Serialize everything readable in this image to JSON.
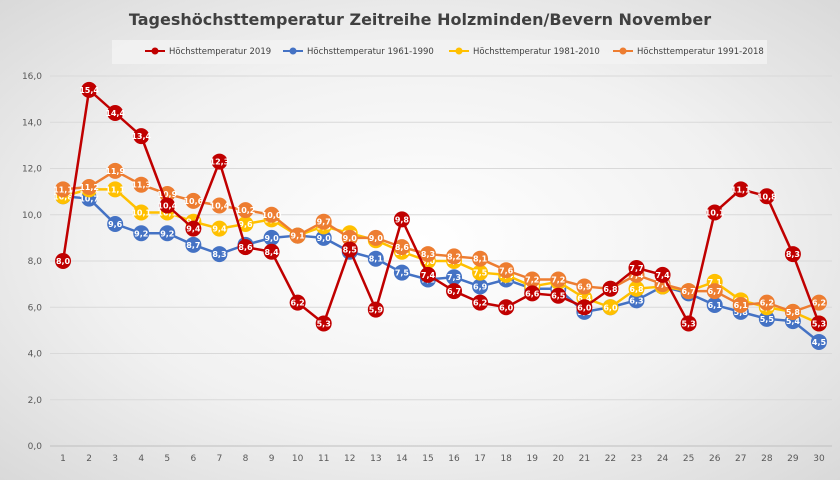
{
  "chart_data": {
    "type": "line",
    "title": "Tageshöchsttemperatur Zeitreihe Holzminden/Bevern November",
    "xlabel": "",
    "ylabel": "",
    "ylim": [
      0,
      16
    ],
    "ytick_labels": [
      "0,0",
      "2,0",
      "4,0",
      "6,0",
      "8,0",
      "10,0",
      "12,0",
      "14,0",
      "16,0"
    ],
    "categories": [
      "1",
      "2",
      "3",
      "4",
      "5",
      "6",
      "7",
      "8",
      "9",
      "10",
      "11",
      "12",
      "13",
      "14",
      "15",
      "16",
      "17",
      "18",
      "19",
      "20",
      "21",
      "22",
      "23",
      "24",
      "25",
      "26",
      "27",
      "28",
      "29",
      "30"
    ],
    "grid": true,
    "legend": "top",
    "series": [
      {
        "name": "Höchsttemperatur 1961-1990",
        "color": "#4472C4",
        "values": [
          10.8,
          10.7,
          9.6,
          9.2,
          9.2,
          8.7,
          8.3,
          8.7,
          9.0,
          9.1,
          9.0,
          8.4,
          8.1,
          7.5,
          7.2,
          7.3,
          6.9,
          7.2,
          6.8,
          6.8,
          5.8,
          6.0,
          6.3,
          6.9,
          6.6,
          6.1,
          5.8,
          5.5,
          5.4,
          4.5
        ],
        "labels": [
          "10,8",
          "10,7",
          "9,6",
          "9,2",
          "9,2",
          "8,7",
          "8,3",
          "8,7",
          "9,0",
          "9,1",
          "9,0",
          "8,4",
          "8,1",
          "7,5",
          "7,2",
          "7,3",
          "6,9",
          "7,2",
          "6,8",
          "6,8",
          "5,8",
          "6,0",
          "6,3",
          "6,9",
          "6,6",
          "6,1",
          "5,8",
          "5,5",
          "5,4",
          "4,5"
        ]
      },
      {
        "name": "Höchsttemperatur 1981-2010",
        "color": "#FFC000",
        "values": [
          10.8,
          11.1,
          11.1,
          10.1,
          10.1,
          9.7,
          9.4,
          9.6,
          9.8,
          9.1,
          9.5,
          9.2,
          8.9,
          8.4,
          8.0,
          8.0,
          7.5,
          7.4,
          6.9,
          7.1,
          6.4,
          6.0,
          6.8,
          6.9,
          6.7,
          7.1,
          6.3,
          6.0,
          5.8,
          5.3
        ],
        "labels": [
          "10,8",
          "11,1",
          "11,1",
          "10,1",
          "10,1",
          "9,7",
          "9,4",
          "9,6",
          "9,8",
          "9,1",
          "9,5",
          "9,2",
          "8,9",
          "8,4",
          "8,0",
          "8,0",
          "7,5",
          "7,4",
          "6,9",
          "7,1",
          "6,4",
          "6,0",
          "6,8",
          "6,9",
          "6,7",
          "7,1",
          "6,3",
          "6,0",
          "5,8",
          "5,3"
        ]
      },
      {
        "name": "Höchsttemperatur 1991-2018",
        "color": "#ED7D31",
        "values": [
          11.1,
          11.2,
          11.9,
          11.3,
          10.9,
          10.6,
          10.4,
          10.2,
          10.0,
          9.1,
          9.7,
          9.0,
          9.0,
          8.6,
          8.3,
          8.2,
          8.1,
          7.6,
          7.2,
          7.2,
          6.9,
          6.8,
          7.4,
          7.0,
          6.7,
          6.7,
          6.1,
          6.2,
          5.8,
          6.2
        ],
        "labels": [
          "11,1",
          "11,2",
          "11,9",
          "11,3",
          "10,9",
          "10,6",
          "10,4",
          "10,2",
          "10,0",
          "9,1",
          "9,7",
          "9,0",
          "9,0",
          "8,6",
          "8,3",
          "8,2",
          "8,1",
          "7,6",
          "7,2",
          "7,2",
          "6,9",
          "6,8",
          "7,4",
          "7,0",
          "6,7",
          "6,7",
          "6,1",
          "6,2",
          "5,8",
          "6,2"
        ]
      },
      {
        "name": "Höchsttemperatur 2019",
        "color": "#C00000",
        "values": [
          8.0,
          15.4,
          14.4,
          13.4,
          10.4,
          9.4,
          12.3,
          8.6,
          8.4,
          6.2,
          5.3,
          8.5,
          5.9,
          9.8,
          7.4,
          6.7,
          6.2,
          6.0,
          6.6,
          6.5,
          6.0,
          6.8,
          7.7,
          7.4,
          5.3,
          10.1,
          11.1,
          10.8,
          8.3,
          5.3
        ],
        "labels": [
          "8,0",
          "15,4",
          "14,4",
          "13,4",
          "10,4",
          "9,4",
          "12,3",
          "8,6",
          "8,4",
          "6,2",
          "5,3",
          "8,5",
          "5,9",
          "9,8",
          "7,4",
          "6,7",
          "6,2",
          "6,0",
          "6,6",
          "6,5",
          "6,0",
          "6,8",
          "7,7",
          "7,4",
          "5,3",
          "10,1",
          "11,1",
          "10,8",
          "8,3",
          "5,3"
        ]
      }
    ],
    "legend_order": [
      "Höchsttemperatur 2019",
      "Höchsttemperatur 1961-1990",
      "Höchsttemperatur 1981-2010",
      "Höchsttemperatur 1991-2018"
    ]
  }
}
